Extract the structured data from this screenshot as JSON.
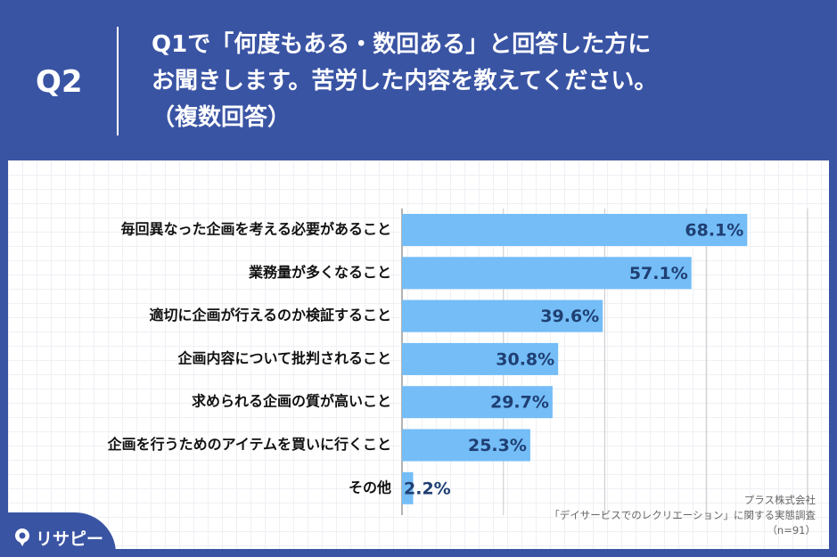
{
  "header": {
    "question_number": "Q2",
    "question_lines": [
      "Q1で「何度もある・数回ある」と回答した方に",
      "お聞きします。苦労した内容を教えてください。",
      "（複数回答）"
    ]
  },
  "chart_data": {
    "type": "bar",
    "orientation": "horizontal",
    "categories": [
      "毎回異なった企画を考える必要があること",
      "業務量が多くなること",
      "適切に企画が行えるのか検証すること",
      "企画内容について批判されること",
      "求められる企画の質が高いこと",
      "企画を行うためのアイテムを買いに行くこと",
      "その他"
    ],
    "values": [
      68.1,
      57.1,
      39.6,
      30.8,
      29.7,
      25.3,
      2.2
    ],
    "value_labels": [
      "68.1%",
      "57.1%",
      "39.6%",
      "30.8%",
      "29.7%",
      "25.3%",
      "2.2%"
    ],
    "xlim": [
      0,
      80
    ],
    "grid": true,
    "bar_color": "#74bdf7",
    "value_label_color": "#1f3f73"
  },
  "source": {
    "line1": "プラス株式会社",
    "line2": "「デイサービスでのレクリエーション」に関する実態調査",
    "line3": "（n=91）"
  },
  "logo": {
    "text": "リサピー",
    "icon": "pin-icon"
  },
  "colors": {
    "background": "#3a54a4",
    "panel": "#ffffff"
  }
}
